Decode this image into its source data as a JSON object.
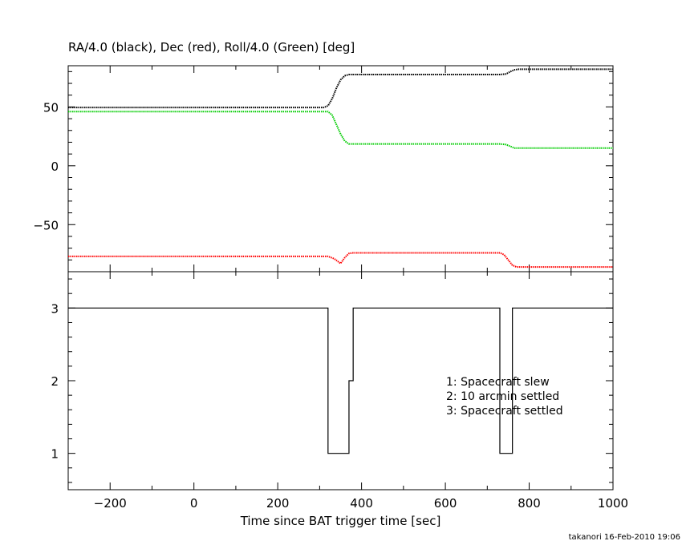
{
  "chart_data": [
    {
      "type": "line",
      "title": "RA/4.0 (black), Dec (red), Roll/4.0 (Green) [deg]",
      "xlim": [
        -300,
        1000
      ],
      "ylim": [
        -90,
        85
      ],
      "x_ticks": [
        -200,
        0,
        200,
        400,
        600,
        800,
        1000
      ],
      "y_ticks": [
        -50,
        0,
        50
      ],
      "y_tick_labels": [
        "−50",
        "0",
        "50"
      ],
      "series": [
        {
          "color": "#000000",
          "x": [
            -300,
            310,
            320,
            330,
            340,
            350,
            360,
            370,
            380,
            730,
            745,
            755,
            765,
            775,
            1000
          ],
          "y": [
            49.5,
            49.5,
            51,
            57,
            66,
            73,
            76.5,
            77.5,
            77.5,
            77.5,
            78,
            80,
            81.5,
            82,
            82
          ]
        },
        {
          "color": "#00cc00",
          "x": [
            -300,
            320,
            330,
            340,
            350,
            360,
            370,
            380,
            730,
            745,
            755,
            765,
            775,
            1000
          ],
          "y": [
            46,
            46,
            43,
            35,
            27,
            21,
            18.5,
            18.5,
            18.5,
            18,
            16.5,
            15,
            15,
            15
          ]
        },
        {
          "color": "#ff0000",
          "x": [
            -300,
            320,
            335,
            350,
            360,
            370,
            380,
            730,
            740,
            750,
            760,
            770,
            1000
          ],
          "y": [
            -77,
            -77,
            -79,
            -83,
            -78,
            -74.5,
            -74,
            -74,
            -75.5,
            -80,
            -84.5,
            -86,
            -86
          ]
        }
      ]
    },
    {
      "type": "line",
      "xlabel": "Time since BAT trigger time [sec]",
      "xlim": [
        -300,
        1000
      ],
      "ylim": [
        0.5,
        3.5
      ],
      "x_ticks": [
        -200,
        0,
        200,
        400,
        600,
        800,
        1000
      ],
      "x_tick_labels": [
        "−200",
        "0",
        "200",
        "400",
        "600",
        "800",
        "1000"
      ],
      "y_ticks": [
        1,
        2,
        3
      ],
      "series": [
        {
          "color": "#000000",
          "step": true,
          "x": [
            -300,
            320,
            320,
            370,
            370,
            380,
            380,
            730,
            730,
            760,
            760,
            1000
          ],
          "y": [
            3,
            3,
            1,
            1,
            2,
            2,
            3,
            3,
            1,
            1,
            3,
            3
          ]
        }
      ],
      "annotations": [
        "1: Spacecraft slew",
        "2: 10 arcmin settled",
        "3: Spacecraft settled"
      ]
    }
  ],
  "footer": "takanori 16-Feb-2010 19:06"
}
